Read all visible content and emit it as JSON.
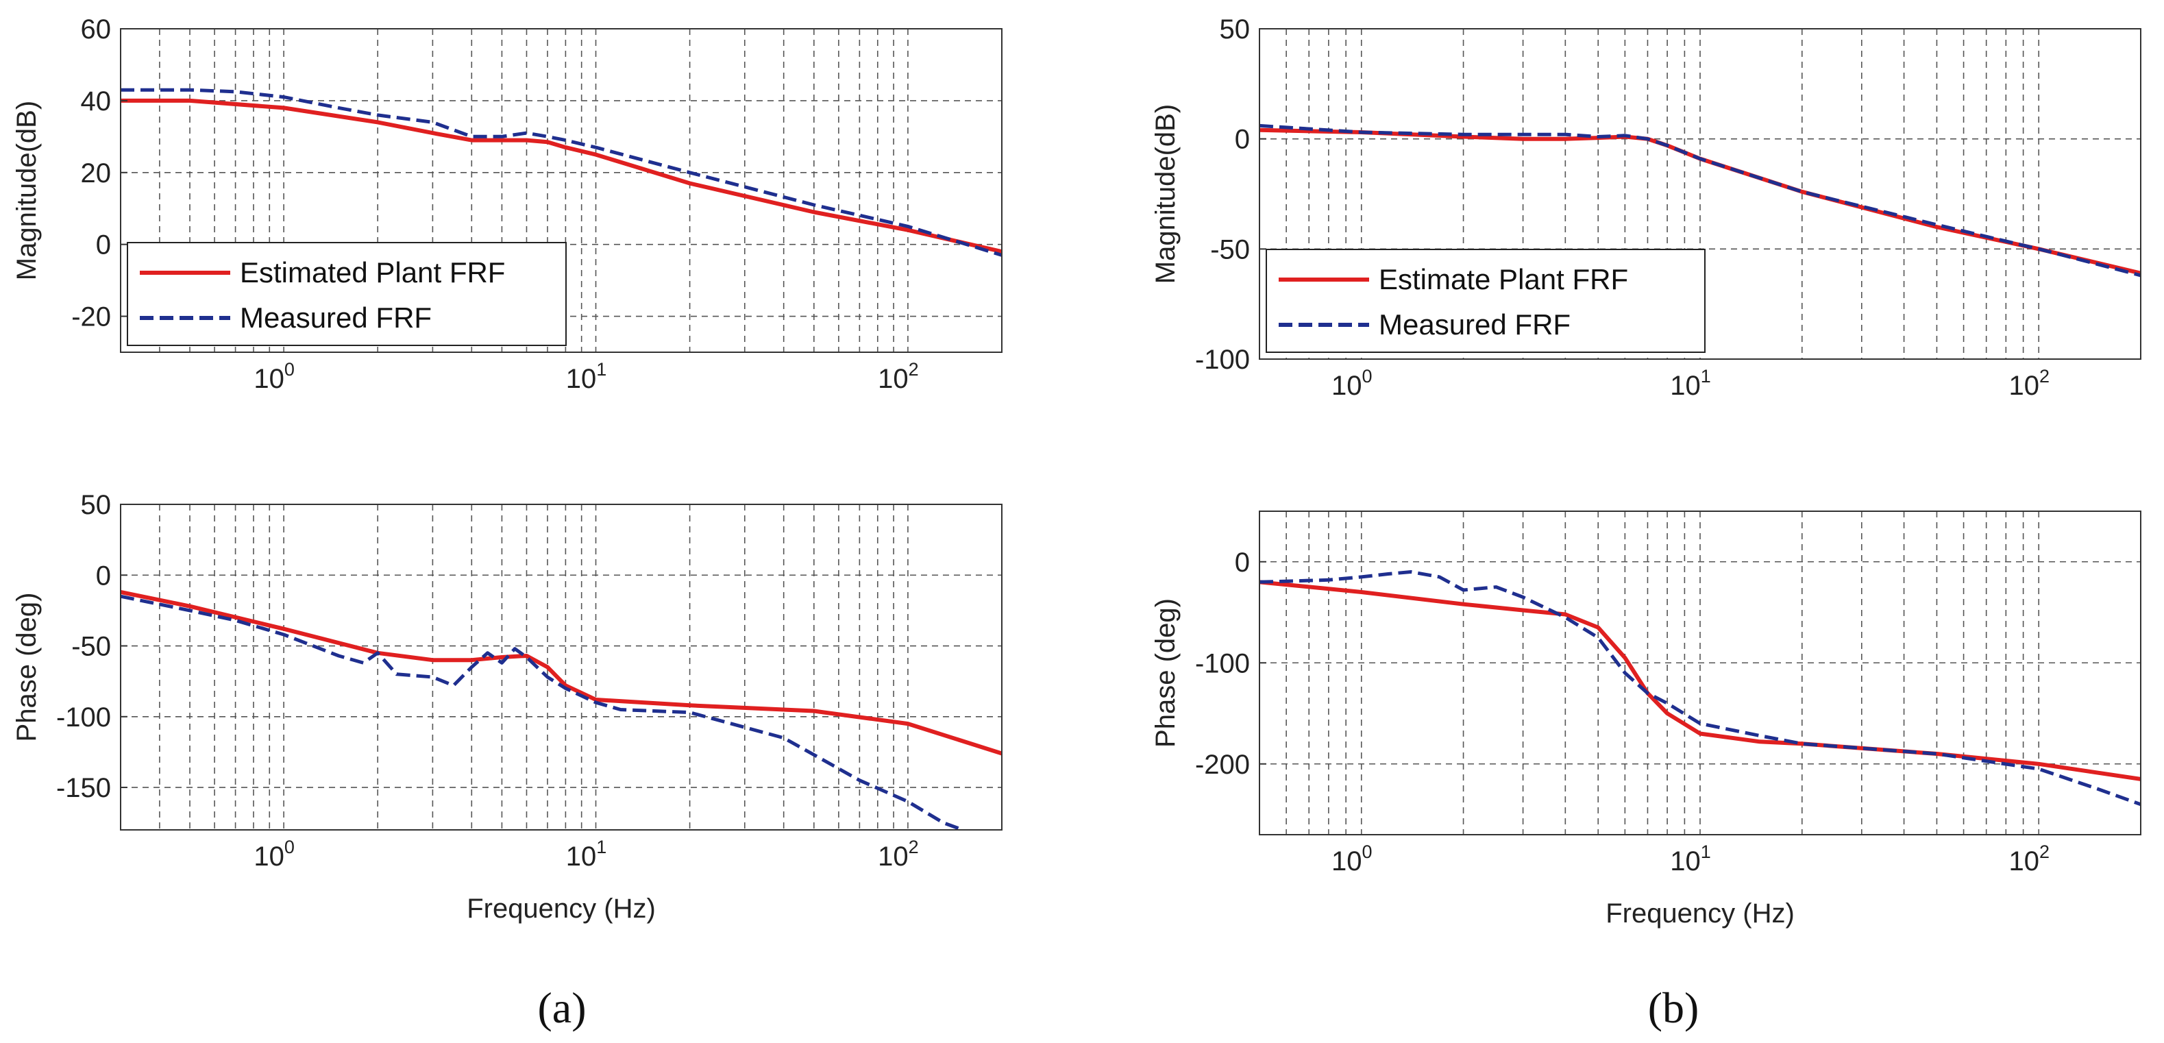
{
  "chart_data": [
    {
      "panel": "(a)",
      "plot": "magnitude",
      "type": "line",
      "xscale": "log",
      "xlim": [
        0.3,
        200
      ],
      "ylim": [
        -30,
        60
      ],
      "yticks": [
        -20,
        0,
        20,
        40,
        60
      ],
      "xticks": [
        1,
        10,
        100
      ],
      "xtick_labels": [
        {
          "base": "10",
          "exp": "0"
        },
        {
          "base": "10",
          "exp": "1"
        },
        {
          "base": "10",
          "exp": "2"
        }
      ],
      "ylabel": "Magnitude(dB)",
      "xlabel": "",
      "grid": true,
      "legend": {
        "position": "bottom-left",
        "entries": [
          "Estimated Plant FRF",
          "Measured FRF"
        ]
      },
      "series": [
        {
          "name": "Estimated Plant FRF",
          "style": "solid",
          "color": "#e02020",
          "x": [
            0.3,
            0.5,
            1,
            2,
            3,
            4,
            5,
            6,
            7,
            8,
            10,
            20,
            50,
            100,
            200
          ],
          "y": [
            40,
            40,
            38,
            34,
            31,
            29,
            29,
            29,
            28.5,
            27,
            25,
            17,
            9,
            4,
            -2
          ]
        },
        {
          "name": "Measured FRF",
          "style": "dashed",
          "color": "#1f2f8f",
          "x": [
            0.3,
            0.5,
            0.7,
            1,
            1.5,
            2,
            3,
            4,
            5,
            6,
            7,
            8,
            10,
            20,
            50,
            100,
            200
          ],
          "y": [
            43,
            43,
            42.5,
            41,
            38,
            36,
            34,
            30,
            30,
            31,
            30,
            29,
            27,
            20,
            11,
            5,
            -3
          ]
        }
      ]
    },
    {
      "panel": "(a)",
      "plot": "phase",
      "type": "line",
      "xscale": "log",
      "xlim": [
        0.3,
        200
      ],
      "ylim": [
        -180,
        50
      ],
      "yticks": [
        -150,
        -100,
        -50,
        0,
        50
      ],
      "xticks": [
        1,
        10,
        100
      ],
      "xtick_labels": [
        {
          "base": "10",
          "exp": "0"
        },
        {
          "base": "10",
          "exp": "1"
        },
        {
          "base": "10",
          "exp": "2"
        }
      ],
      "ylabel": "Phase (deg)",
      "xlabel": "Frequency (Hz)",
      "grid": true,
      "series": [
        {
          "name": "Estimated Plant FRF",
          "style": "solid",
          "color": "#e02020",
          "x": [
            0.3,
            0.5,
            1,
            2,
            3,
            4,
            5,
            6,
            7,
            8,
            10,
            20,
            50,
            100,
            200
          ],
          "y": [
            -12,
            -22,
            -38,
            -55,
            -60,
            -60,
            -58,
            -57,
            -65,
            -78,
            -88,
            -92,
            -96,
            -105,
            -126
          ]
        },
        {
          "name": "Measured FRF",
          "style": "dashed",
          "color": "#1f2f8f",
          "x": [
            0.3,
            0.5,
            0.7,
            1,
            1.5,
            1.8,
            2,
            2.3,
            3,
            3.5,
            4,
            4.5,
            5,
            5.5,
            6,
            7,
            8,
            10,
            12,
            20,
            40,
            70,
            100,
            130,
            150
          ],
          "y": [
            -15,
            -25,
            -32,
            -42,
            -57,
            -62,
            -55,
            -70,
            -72,
            -78,
            -65,
            -55,
            -62,
            -52,
            -58,
            -72,
            -80,
            -90,
            -95,
            -97,
            -115,
            -145,
            -160,
            -175,
            -180
          ]
        }
      ]
    },
    {
      "panel": "(b)",
      "plot": "magnitude",
      "type": "line",
      "xscale": "log",
      "xlim": [
        0.5,
        200
      ],
      "ylim": [
        -100,
        50
      ],
      "yticks": [
        -100,
        -50,
        0,
        50
      ],
      "xticks": [
        1,
        10,
        100
      ],
      "xtick_labels": [
        {
          "base": "10",
          "exp": "0"
        },
        {
          "base": "10",
          "exp": "1"
        },
        {
          "base": "10",
          "exp": "2"
        }
      ],
      "ylabel": "Magnitude(dB)",
      "xlabel": "",
      "grid": true,
      "legend": {
        "position": "bottom-left",
        "entries": [
          "Estimate Plant FRF",
          "Measured FRF"
        ]
      },
      "series": [
        {
          "name": "Estimate Plant FRF",
          "style": "solid",
          "color": "#e02020",
          "x": [
            0.5,
            1,
            2,
            3,
            4,
            5,
            6,
            7,
            8,
            10,
            20,
            50,
            100,
            200
          ],
          "y": [
            4,
            3,
            1,
            0,
            0,
            0.5,
            1,
            0,
            -3,
            -9,
            -24,
            -40,
            -50,
            -61
          ]
        },
        {
          "name": "Measured FRF",
          "style": "dashed",
          "color": "#1f2f8f",
          "x": [
            0.5,
            1,
            2,
            3,
            4,
            5,
            6,
            7,
            8,
            10,
            20,
            50,
            100,
            200
          ],
          "y": [
            6,
            3,
            2,
            2,
            2,
            1,
            1.5,
            0,
            -3,
            -9,
            -24,
            -39,
            -50,
            -62
          ]
        }
      ]
    },
    {
      "panel": "(b)",
      "plot": "phase",
      "type": "line",
      "xscale": "log",
      "xlim": [
        0.5,
        200
      ],
      "ylim": [
        -270,
        50
      ],
      "yticks": [
        -200,
        -100,
        0
      ],
      "xticks": [
        1,
        10,
        100
      ],
      "xtick_labels": [
        {
          "base": "10",
          "exp": "0"
        },
        {
          "base": "10",
          "exp": "1"
        },
        {
          "base": "10",
          "exp": "2"
        }
      ],
      "ylabel": "Phase (deg)",
      "xlabel": "Frequency (Hz)",
      "grid": true,
      "series": [
        {
          "name": "Estimate Plant FRF",
          "style": "solid",
          "color": "#e02020",
          "x": [
            0.5,
            1,
            2,
            3,
            4,
            5,
            6,
            7,
            8,
            10,
            15,
            20,
            50,
            100,
            200
          ],
          "y": [
            -20,
            -30,
            -42,
            -48,
            -52,
            -65,
            -95,
            -130,
            -150,
            -170,
            -178,
            -180,
            -190,
            -200,
            -215
          ]
        },
        {
          "name": "Measured FRF",
          "style": "dashed",
          "color": "#1f2f8f",
          "x": [
            0.5,
            0.8,
            1,
            1.2,
            1.4,
            1.7,
            2,
            2.5,
            3,
            4,
            5,
            6,
            7,
            8,
            10,
            15,
            20,
            50,
            100,
            150,
            200
          ],
          "y": [
            -20,
            -18,
            -15,
            -12,
            -10,
            -15,
            -28,
            -25,
            -35,
            -55,
            -75,
            -110,
            -130,
            -140,
            -160,
            -172,
            -180,
            -190,
            -205,
            -225,
            -240
          ]
        }
      ]
    }
  ],
  "captions": {
    "a": "(a)",
    "b": "(b)"
  }
}
